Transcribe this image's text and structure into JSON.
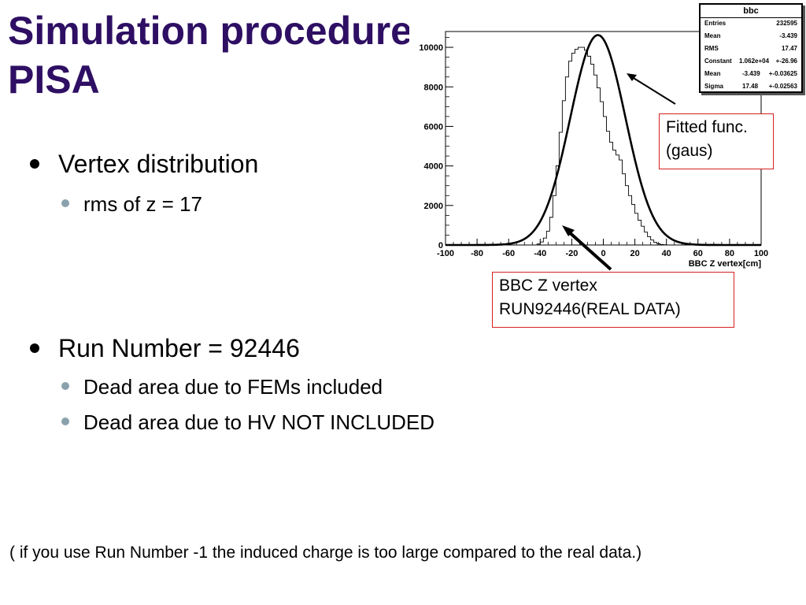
{
  "slide": {
    "title_line1": "Simulation procedure",
    "title_line2": "PISA",
    "bullets": [
      {
        "text": "Vertex distribution",
        "sub": [
          "rms of z = 17"
        ]
      },
      {
        "text": "Run Number = 92446",
        "sub": [
          "Dead area due to FEMs included",
          "Dead area due to HV NOT INCLUDED"
        ]
      }
    ],
    "footnote": "( if you use Run Number -1  the induced charge is too large compared to the real data.)",
    "callouts": {
      "fit_line1": "Fitted func.",
      "fit_line2": "(gaus)",
      "data_line1": "BBC Z vertex",
      "data_line2": "RUN92446(REAL DATA)"
    }
  },
  "stats_box": {
    "title": "bbc",
    "rows": [
      {
        "label": "Entries",
        "value": "232595"
      },
      {
        "label": "Mean",
        "value": "-3.439"
      },
      {
        "label": "RMS",
        "value": "17.47"
      },
      {
        "label": "Constant",
        "value": "1.062e+04",
        "error": "+-26.96"
      },
      {
        "label": "Mean",
        "value": "-3.439",
        "error": "+-0.03625"
      },
      {
        "label": "Sigma",
        "value": "17.48",
        "error": "+-0.02563"
      }
    ]
  },
  "chart_data": {
    "type": "line",
    "title": "",
    "xlabel": "BBC Z vertex[cm]",
    "ylabel": "",
    "xlim": [
      -100,
      100
    ],
    "ylim": [
      0,
      10800
    ],
    "x_ticks": [
      -100,
      -80,
      -60,
      -40,
      -20,
      0,
      20,
      40,
      60,
      80,
      100
    ],
    "x_tick_labels": [
      "-100",
      "-80",
      "-60",
      "-40",
      "-20",
      "0",
      "20",
      "40",
      "60",
      "80",
      "100"
    ],
    "y_ticks": [
      0,
      2000,
      4000,
      6000,
      8000,
      10000
    ],
    "y_tick_labels": [
      "0",
      "2000",
      "4000",
      "6000",
      "8000",
      "10000"
    ],
    "grid": false,
    "series": [
      {
        "kind": "histogram",
        "bin_width": 2,
        "x": [
          -100,
          -98,
          -96,
          -94,
          -92,
          -90,
          -88,
          -86,
          -84,
          -82,
          -80,
          -78,
          -76,
          -74,
          -72,
          -70,
          -68,
          -66,
          -64,
          -62,
          -60,
          -58,
          -56,
          -54,
          -52,
          -50,
          -48,
          -46,
          -44,
          -42,
          -40,
          -38,
          -36,
          -34,
          -32,
          -30,
          -28,
          -26,
          -24,
          -22,
          -20,
          -18,
          -16,
          -14,
          -12,
          -10,
          -8,
          -6,
          -4,
          -2,
          0,
          2,
          4,
          6,
          8,
          10,
          12,
          14,
          16,
          18,
          20,
          22,
          24,
          26,
          28,
          30,
          32,
          34,
          36,
          38,
          40,
          42,
          44,
          46,
          48,
          50,
          52,
          54,
          56,
          58,
          60,
          62,
          64,
          66,
          68,
          70,
          72,
          74,
          76,
          78,
          80,
          82,
          84,
          86,
          88,
          90,
          92,
          94,
          96,
          98
        ],
        "y": [
          0,
          0,
          0,
          0,
          0,
          0,
          0,
          0,
          0,
          0,
          0,
          0,
          0,
          0,
          0,
          0,
          0,
          0,
          0,
          0,
          0,
          0,
          0,
          0,
          0,
          0,
          0,
          0,
          0,
          50,
          150,
          350,
          700,
          1400,
          2500,
          4000,
          5700,
          7300,
          8500,
          9300,
          9700,
          9900,
          10000,
          10000,
          9850,
          9550,
          9150,
          8600,
          7950,
          7250,
          6500,
          5750,
          5200,
          4800,
          4550,
          4300,
          3600,
          3000,
          2500,
          2050,
          1600,
          1250,
          950,
          650,
          420,
          250,
          130,
          60,
          25,
          10,
          0,
          0,
          0,
          0,
          0,
          0,
          0,
          0,
          0,
          0,
          0,
          0,
          0,
          0,
          0,
          0,
          0,
          0,
          0,
          0,
          0,
          0,
          0,
          0,
          0,
          0,
          0,
          0,
          0,
          0
        ]
      },
      {
        "kind": "gaussian_fit",
        "constant": 10620,
        "mean": -3.439,
        "sigma": 17.48
      }
    ]
  }
}
